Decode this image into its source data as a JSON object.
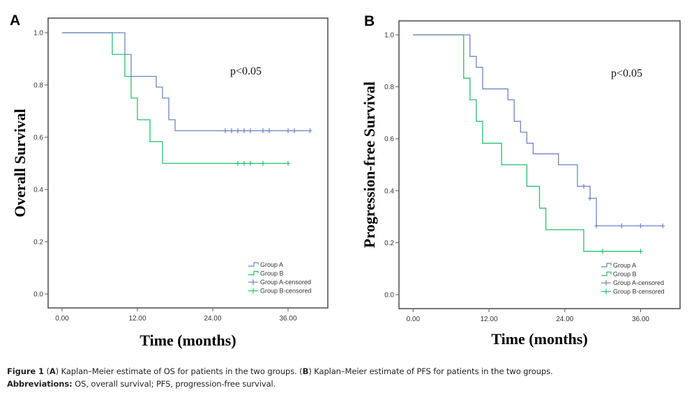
{
  "colors": {
    "group_a": "#6f84c4",
    "group_b": "#23c36b",
    "frame": "#555555"
  },
  "chart_data": [
    {
      "panel": "A",
      "type": "line",
      "subtype": "kaplan-meier",
      "xlabel": "Time (months)",
      "ylabel": "Overall Survival",
      "xticks": [
        "0.00",
        "12.00",
        "24.00",
        "36.00"
      ],
      "xtick_values": [
        0,
        12,
        24,
        36
      ],
      "yticks": [
        "0.0",
        "0.2",
        "0.4",
        "0.6",
        "0.8",
        "1.0"
      ],
      "ytick_values": [
        0,
        0.2,
        0.4,
        0.6,
        0.8,
        1.0
      ],
      "xlim": [
        -2.2,
        42.1
      ],
      "ylim": [
        -0.05,
        1.06
      ],
      "annotation": "p<0.05",
      "legend": [
        "Group A",
        "Group B",
        "Group A-censored",
        "Group B-censored"
      ],
      "legend_position": "bottom-right",
      "series": [
        {
          "name": "Group A",
          "steps": [
            [
              0,
              1.0
            ],
            [
              10,
              0.917
            ],
            [
              11,
              0.833
            ],
            [
              15,
              0.792
            ],
            [
              16,
              0.75
            ],
            [
              17,
              0.667
            ],
            [
              18,
              0.625
            ]
          ],
          "end": 39.5,
          "censored": [
            26,
            27,
            28,
            29,
            30,
            32,
            33,
            36,
            37,
            39.5
          ]
        },
        {
          "name": "Group B",
          "steps": [
            [
              0,
              1.0
            ],
            [
              8,
              0.917
            ],
            [
              10,
              0.833
            ],
            [
              11,
              0.75
            ],
            [
              12,
              0.667
            ],
            [
              14,
              0.583
            ],
            [
              16,
              0.5
            ]
          ],
          "end": 36,
          "censored": [
            28,
            29,
            30,
            32,
            36
          ]
        }
      ]
    },
    {
      "panel": "B",
      "type": "line",
      "subtype": "kaplan-meier",
      "xlabel": "Time (months)",
      "ylabel": "Progression-free Survival",
      "xticks": [
        "0.00",
        "12.00",
        "24.00",
        "36.00"
      ],
      "xtick_values": [
        0,
        12,
        24,
        36
      ],
      "yticks": [
        "0.0",
        "0.2",
        "0.4",
        "0.6",
        "0.8",
        "1.0"
      ],
      "ytick_values": [
        0,
        0.2,
        0.4,
        0.6,
        0.8,
        1.0
      ],
      "xlim": [
        -2.2,
        42.1
      ],
      "ylim": [
        -0.05,
        1.06
      ],
      "annotation": "p<0.05",
      "legend": [
        "Group A",
        "Group B",
        "Group A-censored",
        "Group B-censored"
      ],
      "legend_position": "bottom-right",
      "series": [
        {
          "name": "Group A",
          "steps": [
            [
              0,
              1.0
            ],
            [
              9,
              0.917
            ],
            [
              10,
              0.875
            ],
            [
              11,
              0.792
            ],
            [
              15,
              0.75
            ],
            [
              16,
              0.667
            ],
            [
              17,
              0.625
            ],
            [
              18,
              0.583
            ],
            [
              19,
              0.542
            ],
            [
              23,
              0.5
            ],
            [
              26,
              0.417
            ],
            [
              28,
              0.371
            ],
            [
              29,
              0.265
            ]
          ],
          "end": 39.5,
          "censored": [
            27,
            28,
            29,
            33,
            36,
            39.5
          ]
        },
        {
          "name": "Group B",
          "steps": [
            [
              0,
              1.0
            ],
            [
              8,
              0.833
            ],
            [
              9,
              0.75
            ],
            [
              10,
              0.667
            ],
            [
              11,
              0.583
            ],
            [
              14,
              0.5
            ],
            [
              18,
              0.417
            ],
            [
              20,
              0.333
            ],
            [
              21,
              0.25
            ],
            [
              27,
              0.167
            ]
          ],
          "end": 36,
          "censored": [
            30,
            36
          ]
        }
      ]
    }
  ],
  "caption": {
    "line1_label": "Figure 1",
    "line1_parts": [
      "(",
      "A",
      ") Kaplan–Meier estimate of OS for patients in the two groups. (",
      "B",
      ") Kaplan–Meier estimate of PFS for patients in the two groups."
    ],
    "line2_label": "Abbreviations:",
    "line2_text": " OS, overall survival; PFS, progression-free survival."
  }
}
